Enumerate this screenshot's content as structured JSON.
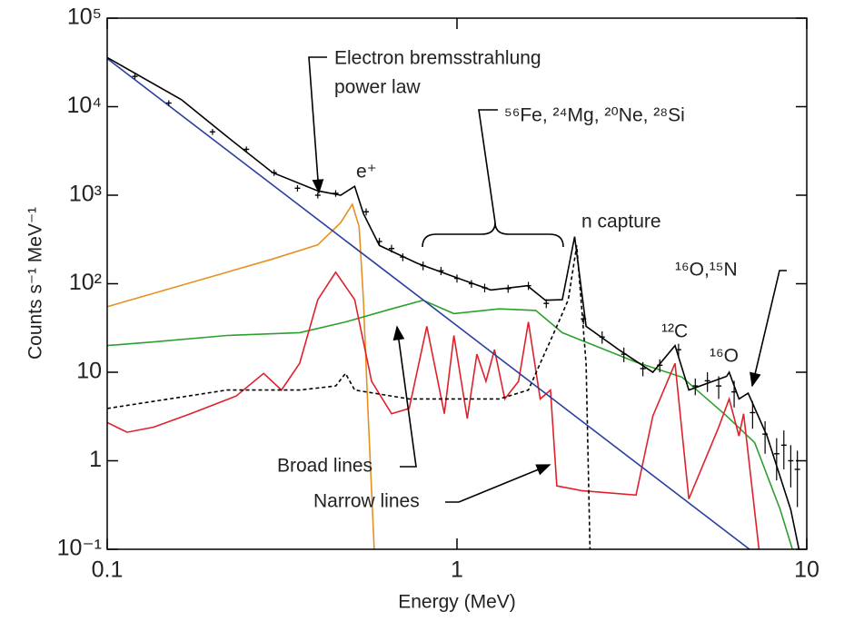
{
  "chart_data": {
    "type": "line",
    "xlabel": "Energy (MeV)",
    "ylabel": "Counts s⁻¹ MeV⁻¹",
    "xscale": "log",
    "yscale": "log",
    "xlim": [
      0.1,
      10
    ],
    "ylim": [
      0.1,
      100000
    ],
    "xticks": [
      0.1,
      1,
      10
    ],
    "yticks": [
      {
        "value": 0.1,
        "label": "10⁻¹"
      },
      1,
      10,
      {
        "value": 100,
        "label": "10²"
      },
      {
        "value": 1000,
        "label": "10³"
      },
      {
        "value": 10000,
        "label": "10⁴"
      },
      {
        "value": 100000,
        "label": "10⁵"
      }
    ],
    "series": [
      {
        "color": "#e8901f",
        "x": [
          0.1,
          0.297,
          0.4,
          0.465,
          0.502,
          0.525,
          0.54,
          0.556,
          0.58
        ],
        "values": [
          55,
          190,
          275,
          490,
          790,
          440,
          66,
          3.9,
          0.1
        ]
      },
      {
        "color": "#2ca02c",
        "x": [
          0.1,
          0.136,
          0.22,
          0.355,
          0.48,
          0.65,
          0.8,
          0.98,
          1.32,
          1.68,
          2.0,
          3.25,
          4.4,
          5.9,
          7.1,
          8.4,
          9.1
        ],
        "values": [
          20,
          22,
          26,
          28,
          37,
          52,
          65,
          46,
          52,
          50,
          28,
          13,
          8.8,
          3.2,
          1.6,
          0.28,
          0.1
        ]
      },
      {
        "color": "#e0202a",
        "x": [
          0.1,
          0.114,
          0.136,
          0.173,
          0.234,
          0.28,
          0.315,
          0.355,
          0.4,
          0.45,
          0.51,
          0.57,
          0.65,
          0.73,
          0.82,
          0.92,
          0.98,
          1.07,
          1.14,
          1.21,
          1.28,
          1.37,
          1.5,
          1.6,
          1.73,
          1.85,
          1.93,
          2.27,
          3.25,
          3.63,
          4.2,
          4.6,
          5.6,
          6.0,
          6.4,
          6.6,
          7.3
        ],
        "values": [
          2.7,
          2.1,
          2.4,
          3.4,
          5.4,
          9.7,
          6.3,
          12.6,
          66,
          135,
          66,
          7.9,
          3.4,
          3.9,
          33,
          3.4,
          26,
          3.0,
          16,
          7.9,
          18,
          5.0,
          7.9,
          37,
          5.0,
          6.3,
          0.52,
          0.46,
          0.41,
          3.2,
          12.6,
          0.37,
          2.4,
          5.0,
          1.9,
          3.4,
          0.1
        ]
      },
      {
        "color": "#000000",
        "dashed": true,
        "x": [
          0.1,
          0.22,
          0.355,
          0.45,
          0.48,
          0.51,
          0.73,
          1.32,
          1.6,
          1.73,
          1.93,
          2.08,
          2.2,
          2.34,
          2.4
        ],
        "values": [
          3.9,
          6.3,
          6.3,
          7.0,
          9.7,
          6.3,
          5.0,
          5.0,
          6.3,
          12.6,
          33,
          66,
          270,
          12.6,
          0.1
        ]
      },
      {
        "color": "#2a3f9e",
        "x": [
          0.1,
          6.86
        ],
        "values": [
          35000,
          0.1
        ]
      },
      {
        "color": "#000000",
        "x": [
          0.1,
          0.163,
          0.22,
          0.297,
          0.4,
          0.465,
          0.51,
          0.54,
          0.6,
          0.77,
          0.98,
          1.25,
          1.59,
          1.79,
          2.0,
          2.17,
          2.34,
          2.9,
          3.63,
          4.2,
          4.6,
          5.9,
          6.0,
          6.4,
          6.8,
          7.7,
          9.0,
          9.5
        ],
        "values": [
          36000,
          12000,
          4600,
          1800,
          1120,
          1000,
          1260,
          620,
          270,
          170,
          120,
          85,
          95,
          65,
          66,
          340,
          33,
          18,
          10,
          20,
          6.3,
          9,
          10,
          5,
          5.8,
          1.9,
          0.28,
          0.1
        ]
      }
    ],
    "points": {
      "color": "#000000",
      "x": [
        0.12,
        0.15,
        0.2,
        0.25,
        0.3,
        0.35,
        0.4,
        0.45,
        0.55,
        0.6,
        0.65,
        0.7,
        0.8,
        0.9,
        1.0,
        1.1,
        1.2,
        1.4,
        1.6,
        1.8,
        2.3,
        2.6,
        3.0,
        3.4,
        3.8,
        4.3,
        4.8,
        5.2,
        5.6,
        6.2,
        7.0,
        7.6,
        8.2,
        8.6,
        9.0,
        9.4
      ],
      "values": [
        22000,
        11000,
        5200,
        3300,
        1800,
        1200,
        1000,
        1050,
        650,
        300,
        250,
        200,
        160,
        140,
        115,
        100,
        90,
        88,
        95,
        60,
        40,
        25,
        16,
        11,
        12,
        18,
        7,
        8,
        7,
        6,
        3.5,
        2,
        1.2,
        1.5,
        1.0,
        0.8
      ],
      "errors": [
        1500,
        800,
        400,
        250,
        150,
        100,
        80,
        90,
        60,
        30,
        25,
        20,
        18,
        15,
        12,
        10,
        10,
        9,
        10,
        7,
        5,
        4,
        3,
        2,
        2,
        3,
        1.5,
        2,
        2,
        2,
        1.2,
        0.8,
        0.6,
        0.7,
        0.5,
        0.5
      ]
    },
    "annotations": [
      "Electron bremsstrahlung",
      "power law",
      "⁵⁶Fe, ²⁴Mg, ²⁰Ne, ²⁸Si",
      "e⁺",
      "n capture",
      "¹⁶O,¹⁵N",
      "¹²C",
      "¹⁶O",
      "Broad lines",
      "Narrow lines"
    ]
  }
}
